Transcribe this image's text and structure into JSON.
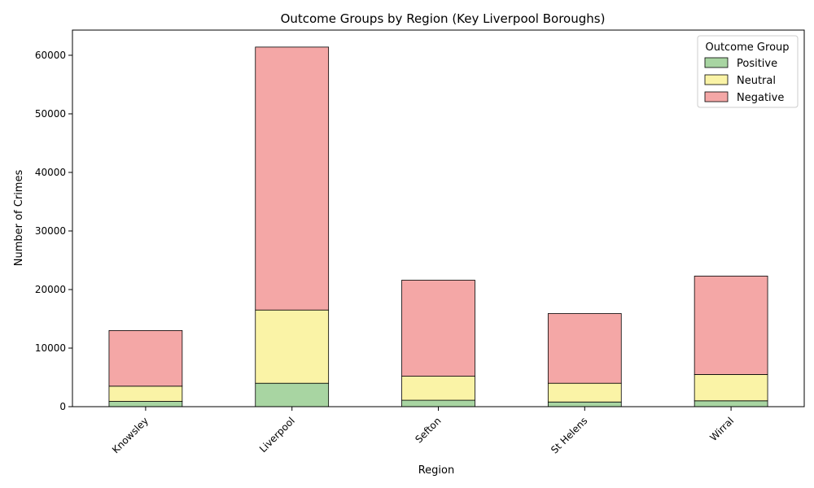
{
  "chart_data": {
    "type": "bar",
    "stacked": true,
    "title": "Outcome Groups by Region (Key Liverpool Boroughs)",
    "xlabel": "Region",
    "ylabel": "Number of Crimes",
    "categories": [
      "Knowsley",
      "Liverpool",
      "Sefton",
      "St Helens",
      "Wirral"
    ],
    "series": [
      {
        "name": "Positive",
        "color": "#a8d5a2",
        "values": [
          900,
          4000,
          1100,
          800,
          1000
        ]
      },
      {
        "name": "Neutral",
        "color": "#faf3a6",
        "values": [
          2600,
          12500,
          4100,
          3200,
          4500
        ]
      },
      {
        "name": "Negative",
        "color": "#f4a7a6",
        "values": [
          9500,
          44900,
          16400,
          11900,
          16800
        ]
      }
    ],
    "ylim": [
      0,
      64300
    ],
    "yticks": [
      0,
      10000,
      20000,
      30000,
      40000,
      50000,
      60000
    ],
    "grid": false,
    "legend": {
      "title": "Outcome Group",
      "position": "top-right"
    }
  }
}
